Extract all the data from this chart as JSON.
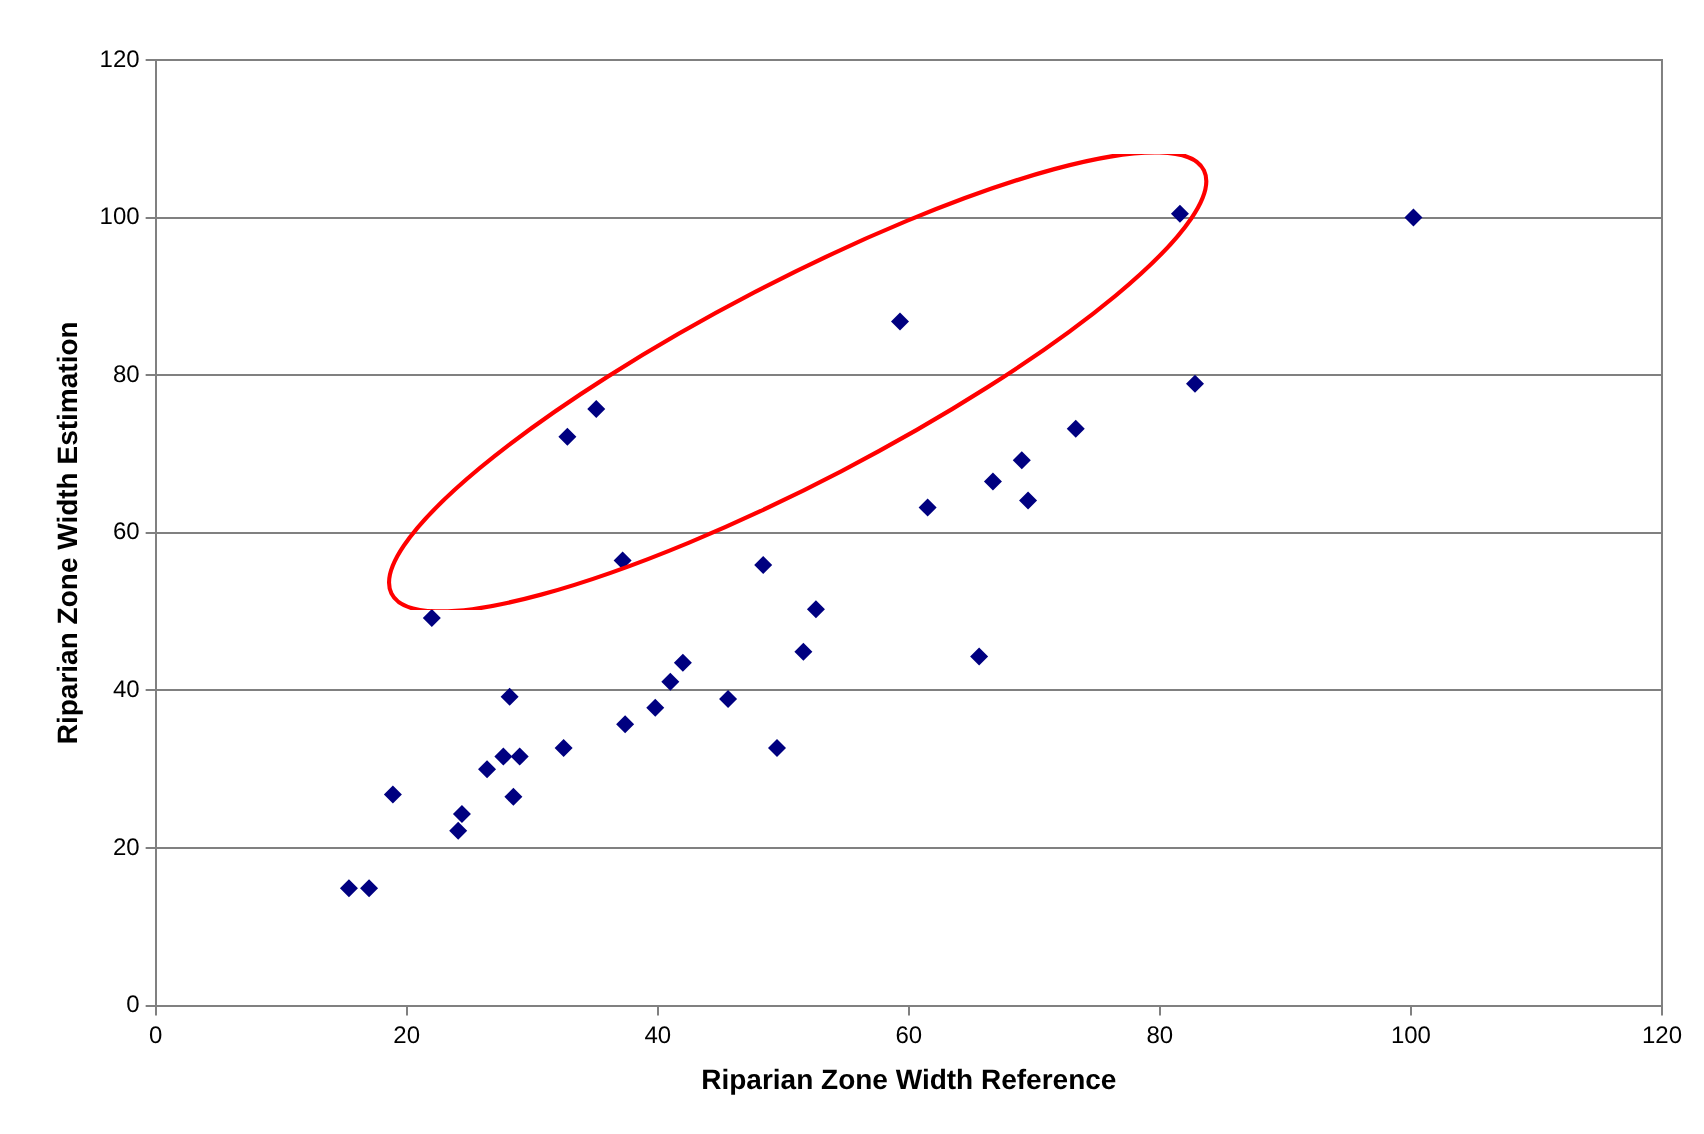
{
  "chart_data": {
    "type": "scatter",
    "xlabel": "Riparian Zone Width Reference",
    "ylabel": "Riparian Zone Width Estimation",
    "x": [
      15.4,
      17.0,
      18.9,
      22.0,
      24.1,
      24.4,
      26.4,
      27.7,
      28.2,
      29.0,
      28.5,
      32.5,
      32.8,
      35.1,
      37.2,
      37.4,
      39.8,
      41.0,
      42.0,
      45.6,
      48.4,
      49.5,
      51.6,
      52.6,
      59.3,
      61.5,
      65.6,
      66.7,
      69.0,
      69.5,
      73.3,
      81.6,
      82.8,
      100.2
    ],
    "series": [
      {
        "color": "#000080",
        "values": [
          14.9,
          14.9,
          26.8,
          49.2,
          22.2,
          24.3,
          30.0,
          31.6,
          39.2,
          31.6,
          26.5,
          32.7,
          72.2,
          75.7,
          56.5,
          35.7,
          37.8,
          41.1,
          43.5,
          38.9,
          55.9,
          32.7,
          44.9,
          50.3,
          86.8,
          63.2,
          44.3,
          66.5,
          69.2,
          64.1,
          73.2,
          100.5,
          78.9,
          100.0
        ]
      }
    ],
    "xlim": [
      0,
      120
    ],
    "xticks": [
      0,
      20,
      40,
      60,
      80,
      100,
      120
    ],
    "ylim": [
      0,
      120
    ],
    "yticks": [
      0,
      20,
      40,
      60,
      80,
      100,
      120
    ],
    "grid": "y",
    "marker": "diamond",
    "legend": false
  }
}
